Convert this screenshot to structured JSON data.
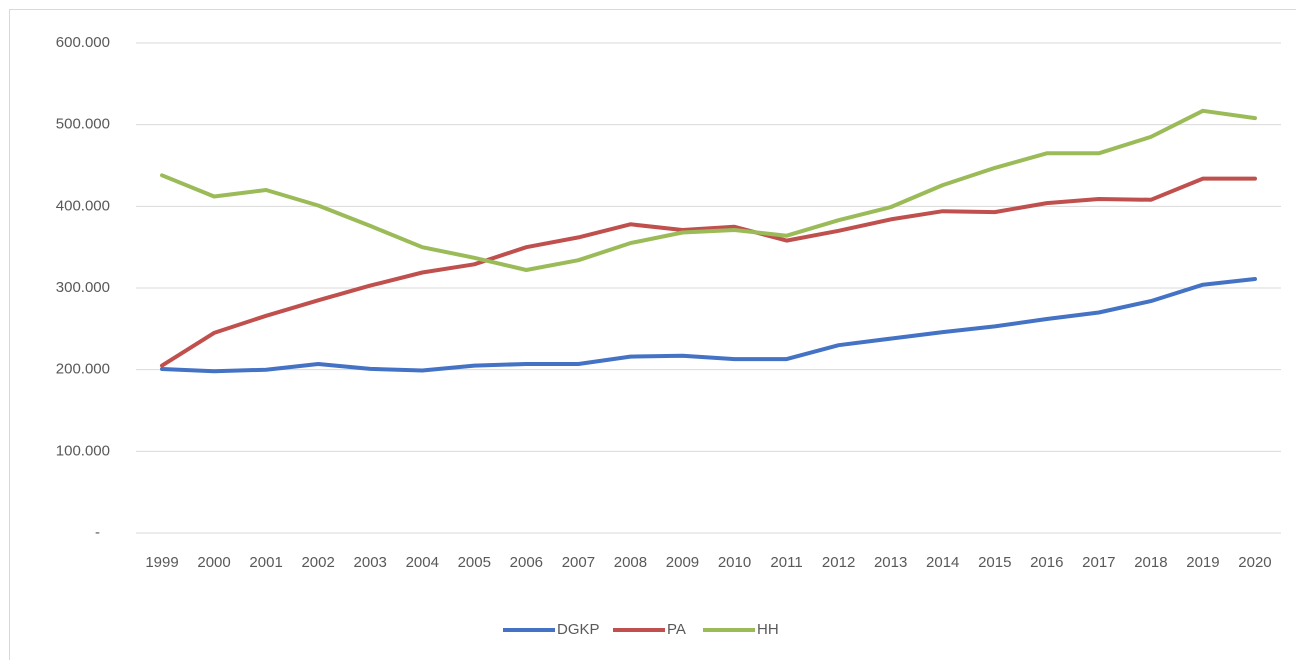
{
  "chart_data": {
    "type": "line",
    "categories": [
      "1999",
      "2000",
      "2001",
      "2002",
      "2003",
      "2004",
      "2005",
      "2006",
      "2007",
      "2008",
      "2009",
      "2010",
      "2011",
      "2012",
      "2013",
      "2014",
      "2015",
      "2016",
      "2017",
      "2018",
      "2019",
      "2020"
    ],
    "series": [
      {
        "name": "DGKP",
        "color": "#4472c4",
        "values": [
          200800,
          198000,
          200000,
          207000,
          201000,
          199000,
          205000,
          207000,
          207000,
          216000,
          217000,
          213000,
          213000,
          230000,
          238000,
          246000,
          253000,
          262000,
          270000,
          284000,
          304000,
          311000
        ]
      },
      {
        "name": "PA",
        "color": "#c0504d",
        "values": [
          205000,
          245000,
          266000,
          285000,
          303000,
          319000,
          329000,
          350000,
          362000,
          378000,
          371000,
          375000,
          358000,
          370000,
          384000,
          394000,
          393000,
          404000,
          409000,
          408000,
          434000,
          434000
        ]
      },
      {
        "name": "HH",
        "color": "#9bbb59",
        "values": [
          438000,
          412000,
          420000,
          401000,
          376000,
          350000,
          337000,
          322000,
          334000,
          355000,
          368000,
          371000,
          364000,
          383000,
          399000,
          426000,
          447000,
          465000,
          465000,
          485000,
          517000,
          508000
        ]
      }
    ],
    "ylim": [
      0,
      600000
    ],
    "yticks": [
      {
        "value": 0,
        "label": "-"
      },
      {
        "value": 100000,
        "label": "100.000"
      },
      {
        "value": 200000,
        "label": "200.000"
      },
      {
        "value": 300000,
        "label": "300.000"
      },
      {
        "value": 400000,
        "label": "400.000"
      },
      {
        "value": 500000,
        "label": "500.000"
      },
      {
        "value": 600000,
        "label": "600.000"
      }
    ],
    "grid": true,
    "legend": "bottom"
  }
}
